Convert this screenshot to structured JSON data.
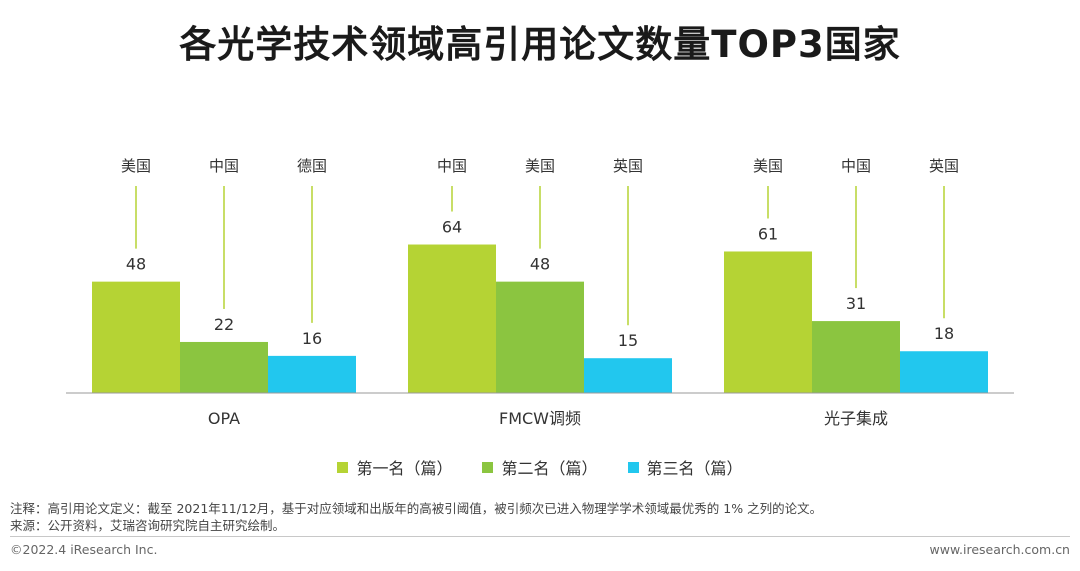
{
  "title": "各光学技术领域高引用论文数量TOP3国家",
  "chart_data": {
    "type": "bar",
    "categories": [
      "OPA",
      "FMCW调频",
      "光子集成"
    ],
    "series": [
      {
        "name": "第一名（篇）",
        "color": "#b5d334",
        "values": [
          48,
          64,
          61
        ],
        "countries": [
          "美国",
          "中国",
          "美国"
        ]
      },
      {
        "name": "第二名（篇）",
        "color": "#8bc540",
        "values": [
          22,
          48,
          31
        ],
        "countries": [
          "中国",
          "美国",
          "中国"
        ]
      },
      {
        "name": "第三名（篇）",
        "color": "#22c7ee",
        "values": [
          16,
          15,
          18
        ],
        "countries": [
          "德国",
          "英国",
          "英国"
        ]
      }
    ],
    "ylim": [
      0,
      80
    ],
    "legend_position": "bottom",
    "grid": false
  },
  "note": "注释：高引用论文定义：截至 2021年11/12月，基于对应领域和出版年的高被引阈值，被引频次已进入物理学学术领域最优秀的 1% 之列的论文。",
  "source": "来源：公开资料，艾瑞咨询研究院自主研究绘制。",
  "footer": {
    "left": "©2022.4 iResearch Inc.",
    "right": "www.iresearch.com.cn"
  }
}
